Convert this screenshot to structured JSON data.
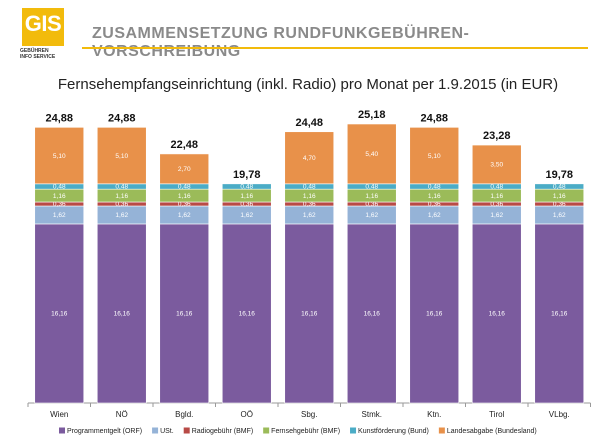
{
  "header": {
    "logo_text": "GIS",
    "logo_subtitle_line1": "GEBÜHREN",
    "logo_subtitle_line2": "INFO SERVICE",
    "title": "ZUSAMMENSETZUNG RUNDFUNKGEBÜHREN-VORSCHREIBUNG",
    "accent_color": "#f2bb0c"
  },
  "chart_data": {
    "type": "bar",
    "stacked": true,
    "title": "Fernsehempfangseinrichtung (inkl. Radio) pro Monat per 1.9.2015 (in EUR)",
    "categories": [
      "Wien",
      "NÖ",
      "Bgld.",
      "OÖ",
      "Sbg.",
      "Stmk.",
      "Ktn.",
      "Tirol",
      "VLbg."
    ],
    "totals": [
      "24,88",
      "24,88",
      "22,48",
      "19,78",
      "24,48",
      "25,18",
      "24,88",
      "23,28",
      "19,78"
    ],
    "ylim": [
      0,
      25.18
    ],
    "legend_position": "bottom",
    "series": [
      {
        "name": "Programmentgelt (ORF)",
        "color": "#7b5b9e",
        "values": [
          16.16,
          16.16,
          16.16,
          16.16,
          16.16,
          16.16,
          16.16,
          16.16,
          16.16
        ],
        "labels": [
          "16,16",
          "16,16",
          "16,16",
          "16,16",
          "16,16",
          "16,16",
          "16,16",
          "16,16",
          "16,16"
        ]
      },
      {
        "name": "USt.",
        "color": "#95b3d7",
        "values": [
          1.62,
          1.62,
          1.62,
          1.62,
          1.62,
          1.62,
          1.62,
          1.62,
          1.62
        ],
        "labels": [
          "1,62",
          "1,62",
          "1,62",
          "1,62",
          "1,62",
          "1,62",
          "1,62",
          "1,62",
          "1,62"
        ]
      },
      {
        "name": "Radiogebühr (BMF)",
        "color": "#b84a46",
        "values": [
          0.36,
          0.36,
          0.36,
          0.36,
          0.36,
          0.36,
          0.36,
          0.36,
          0.36
        ],
        "labels": [
          "0,36",
          "0,36",
          "0,36",
          "0,36",
          "0,36",
          "0,36",
          "0,36",
          "0,36",
          "0,36"
        ]
      },
      {
        "name": "Fernsehgebühr (BMF)",
        "color": "#9bbb59",
        "values": [
          1.16,
          1.16,
          1.16,
          1.16,
          1.16,
          1.16,
          1.16,
          1.16,
          1.16
        ],
        "labels": [
          "1,16",
          "1,16",
          "1,16",
          "1,16",
          "1,16",
          "1,16",
          "1,16",
          "1,16",
          "1,16"
        ]
      },
      {
        "name": "Kunstförderung (Bund)",
        "color": "#4bacc6",
        "values": [
          0.48,
          0.48,
          0.48,
          0.48,
          0.48,
          0.48,
          0.48,
          0.48,
          0.48
        ],
        "labels": [
          "0,48",
          "0,48",
          "0,48",
          "0,48",
          "0,48",
          "0,48",
          "0,48",
          "0,48",
          "0,48"
        ]
      },
      {
        "name": "Landesabgabe (Bundesland)",
        "color": "#e8914a",
        "values": [
          5.1,
          5.1,
          2.7,
          0,
          4.7,
          5.4,
          5.1,
          3.5,
          0
        ],
        "labels": [
          "5,10",
          "5,10",
          "2,70",
          "",
          "4,70",
          "5,40",
          "5,10",
          "3,50",
          ""
        ]
      }
    ]
  }
}
